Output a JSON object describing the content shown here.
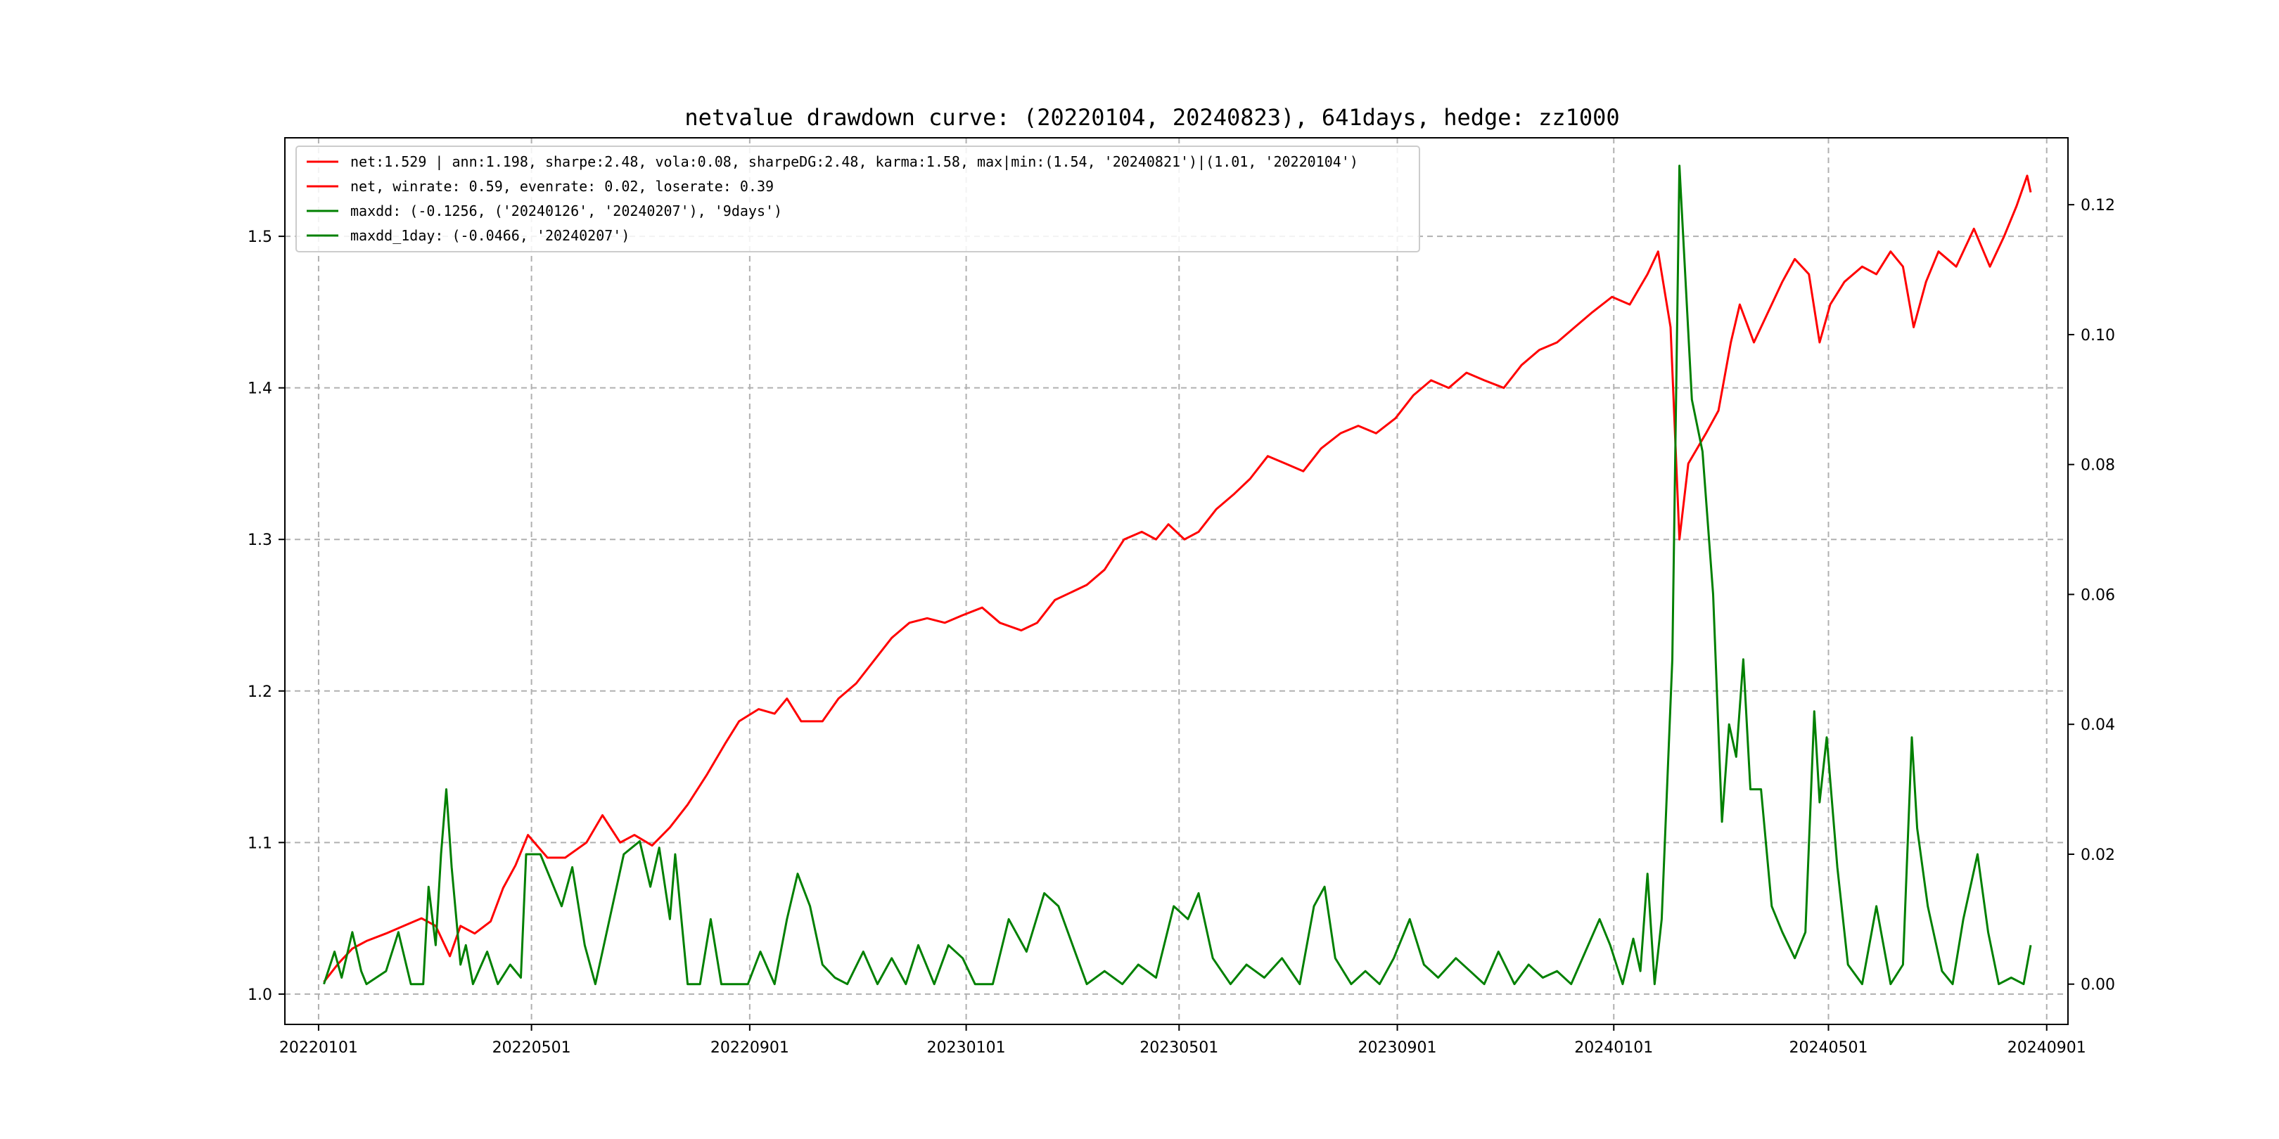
{
  "chart_data": {
    "type": "line",
    "title": "netvalue drawdown curve: (20220104, 20240823), 641days, hedge: zz1000",
    "x_ticks": [
      "20220101",
      "20220501",
      "20220901",
      "20230101",
      "20230501",
      "20230901",
      "20240101",
      "20240501",
      "20240901"
    ],
    "y_left_ticks": [
      "1.0",
      "1.1",
      "1.2",
      "1.3",
      "1.4",
      "1.5"
    ],
    "y_right_ticks": [
      "0.00",
      "0.02",
      "0.04",
      "0.06",
      "0.08",
      "0.10",
      "0.12"
    ],
    "y_left_range": [
      0.98,
      1.565
    ],
    "y_right_range": [
      -0.0062,
      0.1303
    ],
    "x_range": [
      "2021-12-13",
      "2024-09-13"
    ],
    "grid": true,
    "legend_placement": "upper-left",
    "legend": [
      {
        "label": "net:1.529 | ann:1.198, sharpe:2.48, vola:0.08, sharpeDG:2.48, karma:1.58, max|min:(1.54, '20240821')|(1.01, '20220104')",
        "color": "#ff0000"
      },
      {
        "label": "net, winrate: 0.59, evenrate: 0.02, loserate: 0.39",
        "color": "#ff0000"
      },
      {
        "label": "maxdd: (-0.1256, ('20240126', '20240207'), '9days')",
        "color": "#008000"
      },
      {
        "label": "maxdd_1day: (-0.0466, '20240207')",
        "color": "#008000"
      }
    ],
    "series": [
      {
        "name": "net",
        "axis": "left",
        "color": "#ff0000",
        "points": [
          [
            "2022-01-04",
            1.008
          ],
          [
            "2022-01-12",
            1.02
          ],
          [
            "2022-01-20",
            1.03
          ],
          [
            "2022-01-28",
            1.035
          ],
          [
            "2022-02-08",
            1.04
          ],
          [
            "2022-02-18",
            1.045
          ],
          [
            "2022-02-28",
            1.05
          ],
          [
            "2022-03-08",
            1.045
          ],
          [
            "2022-03-16",
            1.025
          ],
          [
            "2022-03-22",
            1.045
          ],
          [
            "2022-03-30",
            1.04
          ],
          [
            "2022-04-08",
            1.048
          ],
          [
            "2022-04-15",
            1.07
          ],
          [
            "2022-04-22",
            1.085
          ],
          [
            "2022-04-29",
            1.105
          ],
          [
            "2022-05-10",
            1.09
          ],
          [
            "2022-05-20",
            1.09
          ],
          [
            "2022-06-01",
            1.1
          ],
          [
            "2022-06-10",
            1.118
          ],
          [
            "2022-06-20",
            1.1
          ],
          [
            "2022-06-28",
            1.105
          ],
          [
            "2022-07-08",
            1.098
          ],
          [
            "2022-07-18",
            1.11
          ],
          [
            "2022-07-28",
            1.125
          ],
          [
            "2022-08-08",
            1.145
          ],
          [
            "2022-08-18",
            1.165
          ],
          [
            "2022-08-26",
            1.18
          ],
          [
            "2022-09-06",
            1.188
          ],
          [
            "2022-09-15",
            1.185
          ],
          [
            "2022-09-22",
            1.195
          ],
          [
            "2022-09-30",
            1.18
          ],
          [
            "2022-10-12",
            1.18
          ],
          [
            "2022-10-21",
            1.195
          ],
          [
            "2022-10-31",
            1.205
          ],
          [
            "2022-11-10",
            1.22
          ],
          [
            "2022-11-20",
            1.235
          ],
          [
            "2022-11-30",
            1.245
          ],
          [
            "2022-12-10",
            1.248
          ],
          [
            "2022-12-20",
            1.245
          ],
          [
            "2022-12-30",
            1.25
          ],
          [
            "2023-01-10",
            1.255
          ],
          [
            "2023-01-20",
            1.245
          ],
          [
            "2023-02-01",
            1.24
          ],
          [
            "2023-02-10",
            1.245
          ],
          [
            "2023-02-20",
            1.26
          ],
          [
            "2023-03-01",
            1.265
          ],
          [
            "2023-03-10",
            1.27
          ],
          [
            "2023-03-20",
            1.28
          ],
          [
            "2023-03-31",
            1.3
          ],
          [
            "2023-04-10",
            1.305
          ],
          [
            "2023-04-18",
            1.3
          ],
          [
            "2023-04-25",
            1.31
          ],
          [
            "2023-05-04",
            1.3
          ],
          [
            "2023-05-12",
            1.305
          ],
          [
            "2023-05-22",
            1.32
          ],
          [
            "2023-06-01",
            1.33
          ],
          [
            "2023-06-10",
            1.34
          ],
          [
            "2023-06-20",
            1.355
          ],
          [
            "2023-06-30",
            1.35
          ],
          [
            "2023-07-10",
            1.345
          ],
          [
            "2023-07-20",
            1.36
          ],
          [
            "2023-07-31",
            1.37
          ],
          [
            "2023-08-10",
            1.375
          ],
          [
            "2023-08-20",
            1.37
          ],
          [
            "2023-08-31",
            1.38
          ],
          [
            "2023-09-10",
            1.395
          ],
          [
            "2023-09-20",
            1.405
          ],
          [
            "2023-09-30",
            1.4
          ],
          [
            "2023-10-10",
            1.41
          ],
          [
            "2023-10-20",
            1.405
          ],
          [
            "2023-10-31",
            1.4
          ],
          [
            "2023-11-10",
            1.415
          ],
          [
            "2023-11-20",
            1.425
          ],
          [
            "2023-11-30",
            1.43
          ],
          [
            "2023-12-10",
            1.44
          ],
          [
            "2023-12-20",
            1.45
          ],
          [
            "2023-12-31",
            1.46
          ],
          [
            "2024-01-10",
            1.455
          ],
          [
            "2024-01-20",
            1.475
          ],
          [
            "2024-01-26",
            1.49
          ],
          [
            "2024-02-02",
            1.44
          ],
          [
            "2024-02-07",
            1.3
          ],
          [
            "2024-02-12",
            1.35
          ],
          [
            "2024-02-22",
            1.37
          ],
          [
            "2024-02-29",
            1.385
          ],
          [
            "2024-03-07",
            1.43
          ],
          [
            "2024-03-12",
            1.455
          ],
          [
            "2024-03-20",
            1.43
          ],
          [
            "2024-03-28",
            1.45
          ],
          [
            "2024-04-05",
            1.47
          ],
          [
            "2024-04-12",
            1.485
          ],
          [
            "2024-04-20",
            1.475
          ],
          [
            "2024-04-26",
            1.43
          ],
          [
            "2024-05-02",
            1.455
          ],
          [
            "2024-05-10",
            1.47
          ],
          [
            "2024-05-20",
            1.48
          ],
          [
            "2024-05-28",
            1.475
          ],
          [
            "2024-06-05",
            1.49
          ],
          [
            "2024-06-12",
            1.48
          ],
          [
            "2024-06-18",
            1.44
          ],
          [
            "2024-06-25",
            1.47
          ],
          [
            "2024-07-02",
            1.49
          ],
          [
            "2024-07-12",
            1.48
          ],
          [
            "2024-07-22",
            1.505
          ],
          [
            "2024-07-31",
            1.48
          ],
          [
            "2024-08-08",
            1.5
          ],
          [
            "2024-08-15",
            1.52
          ],
          [
            "2024-08-21",
            1.54
          ],
          [
            "2024-08-23",
            1.529
          ]
        ]
      },
      {
        "name": "maxdd",
        "axis": "right",
        "color": "#008000",
        "points": [
          [
            "2022-01-04",
            0.0
          ],
          [
            "2022-01-10",
            0.005
          ],
          [
            "2022-01-14",
            0.001
          ],
          [
            "2022-01-20",
            0.008
          ],
          [
            "2022-01-25",
            0.002
          ],
          [
            "2022-01-28",
            0.0
          ],
          [
            "2022-02-08",
            0.002
          ],
          [
            "2022-02-15",
            0.008
          ],
          [
            "2022-02-22",
            0.0
          ],
          [
            "2022-03-01",
            0.0
          ],
          [
            "2022-03-04",
            0.015
          ],
          [
            "2022-03-08",
            0.006
          ],
          [
            "2022-03-11",
            0.02
          ],
          [
            "2022-03-14",
            0.03
          ],
          [
            "2022-03-17",
            0.018
          ],
          [
            "2022-03-22",
            0.003
          ],
          [
            "2022-03-25",
            0.006
          ],
          [
            "2022-03-29",
            0.0
          ],
          [
            "2022-04-06",
            0.005
          ],
          [
            "2022-04-12",
            0.0
          ],
          [
            "2022-04-19",
            0.003
          ],
          [
            "2022-04-25",
            0.001
          ],
          [
            "2022-04-28",
            0.02
          ],
          [
            "2022-05-06",
            0.02
          ],
          [
            "2022-05-12",
            0.016
          ],
          [
            "2022-05-18",
            0.012
          ],
          [
            "2022-05-24",
            0.018
          ],
          [
            "2022-05-31",
            0.006
          ],
          [
            "2022-06-06",
            0.0
          ],
          [
            "2022-06-14",
            0.01
          ],
          [
            "2022-06-22",
            0.02
          ],
          [
            "2022-07-01",
            0.022
          ],
          [
            "2022-07-07",
            0.015
          ],
          [
            "2022-07-12",
            0.021
          ],
          [
            "2022-07-18",
            0.01
          ],
          [
            "2022-07-21",
            0.02
          ],
          [
            "2022-07-28",
            0.0
          ],
          [
            "2022-08-04",
            0.0
          ],
          [
            "2022-08-10",
            0.01
          ],
          [
            "2022-08-16",
            0.0
          ],
          [
            "2022-08-24",
            0.0
          ],
          [
            "2022-08-31",
            0.0
          ],
          [
            "2022-09-07",
            0.005
          ],
          [
            "2022-09-15",
            0.0
          ],
          [
            "2022-09-22",
            0.01
          ],
          [
            "2022-09-28",
            0.017
          ],
          [
            "2022-10-05",
            0.012
          ],
          [
            "2022-10-12",
            0.003
          ],
          [
            "2022-10-19",
            0.001
          ],
          [
            "2022-10-26",
            0.0
          ],
          [
            "2022-11-04",
            0.005
          ],
          [
            "2022-11-12",
            0.0
          ],
          [
            "2022-11-20",
            0.004
          ],
          [
            "2022-11-28",
            0.0
          ],
          [
            "2022-12-05",
            0.006
          ],
          [
            "2022-12-14",
            0.0
          ],
          [
            "2022-12-22",
            0.006
          ],
          [
            "2022-12-30",
            0.004
          ],
          [
            "2023-01-06",
            0.0
          ],
          [
            "2023-01-16",
            0.0
          ],
          [
            "2023-01-25",
            0.01
          ],
          [
            "2023-02-04",
            0.005
          ],
          [
            "2023-02-14",
            0.014
          ],
          [
            "2023-02-22",
            0.012
          ],
          [
            "2023-03-02",
            0.006
          ],
          [
            "2023-03-10",
            0.0
          ],
          [
            "2023-03-20",
            0.002
          ],
          [
            "2023-03-30",
            0.0
          ],
          [
            "2023-04-08",
            0.003
          ],
          [
            "2023-04-18",
            0.001
          ],
          [
            "2023-04-28",
            0.012
          ],
          [
            "2023-05-06",
            0.01
          ],
          [
            "2023-05-12",
            0.014
          ],
          [
            "2023-05-20",
            0.004
          ],
          [
            "2023-05-30",
            0.0
          ],
          [
            "2023-06-08",
            0.003
          ],
          [
            "2023-06-18",
            0.001
          ],
          [
            "2023-06-28",
            0.004
          ],
          [
            "2023-07-08",
            0.0
          ],
          [
            "2023-07-16",
            0.012
          ],
          [
            "2023-07-22",
            0.015
          ],
          [
            "2023-07-28",
            0.004
          ],
          [
            "2023-08-06",
            0.0
          ],
          [
            "2023-08-14",
            0.002
          ],
          [
            "2023-08-22",
            0.0
          ],
          [
            "2023-08-30",
            0.004
          ],
          [
            "2023-09-08",
            0.01
          ],
          [
            "2023-09-16",
            0.003
          ],
          [
            "2023-09-24",
            0.001
          ],
          [
            "2023-10-04",
            0.004
          ],
          [
            "2023-10-12",
            0.002
          ],
          [
            "2023-10-20",
            0.0
          ],
          [
            "2023-10-28",
            0.005
          ],
          [
            "2023-11-06",
            0.0
          ],
          [
            "2023-11-14",
            0.003
          ],
          [
            "2023-11-22",
            0.001
          ],
          [
            "2023-11-30",
            0.002
          ],
          [
            "2023-12-08",
            0.0
          ],
          [
            "2023-12-16",
            0.005
          ],
          [
            "2023-12-24",
            0.01
          ],
          [
            "2023-12-30",
            0.006
          ],
          [
            "2024-01-06",
            0.0
          ],
          [
            "2024-01-12",
            0.007
          ],
          [
            "2024-01-16",
            0.002
          ],
          [
            "2024-01-20",
            0.017
          ],
          [
            "2024-01-24",
            0.0
          ],
          [
            "2024-01-28",
            0.01
          ],
          [
            "2024-02-03",
            0.05
          ],
          [
            "2024-02-07",
            0.126
          ],
          [
            "2024-02-14",
            0.09
          ],
          [
            "2024-02-20",
            0.082
          ],
          [
            "2024-02-26",
            0.06
          ],
          [
            "2024-03-02",
            0.025
          ],
          [
            "2024-03-06",
            0.04
          ],
          [
            "2024-03-10",
            0.035
          ],
          [
            "2024-03-14",
            0.05
          ],
          [
            "2024-03-18",
            0.03
          ],
          [
            "2024-03-24",
            0.03
          ],
          [
            "2024-03-30",
            0.012
          ],
          [
            "2024-04-05",
            0.008
          ],
          [
            "2024-04-12",
            0.004
          ],
          [
            "2024-04-18",
            0.008
          ],
          [
            "2024-04-23",
            0.042
          ],
          [
            "2024-04-26",
            0.028
          ],
          [
            "2024-04-30",
            0.038
          ],
          [
            "2024-05-06",
            0.018
          ],
          [
            "2024-05-12",
            0.003
          ],
          [
            "2024-05-20",
            0.0
          ],
          [
            "2024-05-28",
            0.012
          ],
          [
            "2024-06-05",
            0.0
          ],
          [
            "2024-06-12",
            0.003
          ],
          [
            "2024-06-17",
            0.038
          ],
          [
            "2024-06-20",
            0.024
          ],
          [
            "2024-06-26",
            0.012
          ],
          [
            "2024-07-04",
            0.002
          ],
          [
            "2024-07-10",
            0.0
          ],
          [
            "2024-07-16",
            0.01
          ],
          [
            "2024-07-24",
            0.02
          ],
          [
            "2024-07-30",
            0.008
          ],
          [
            "2024-08-05",
            0.0
          ],
          [
            "2024-08-12",
            0.001
          ],
          [
            "2024-08-19",
            0.0
          ],
          [
            "2024-08-23",
            0.006
          ]
        ]
      }
    ]
  }
}
